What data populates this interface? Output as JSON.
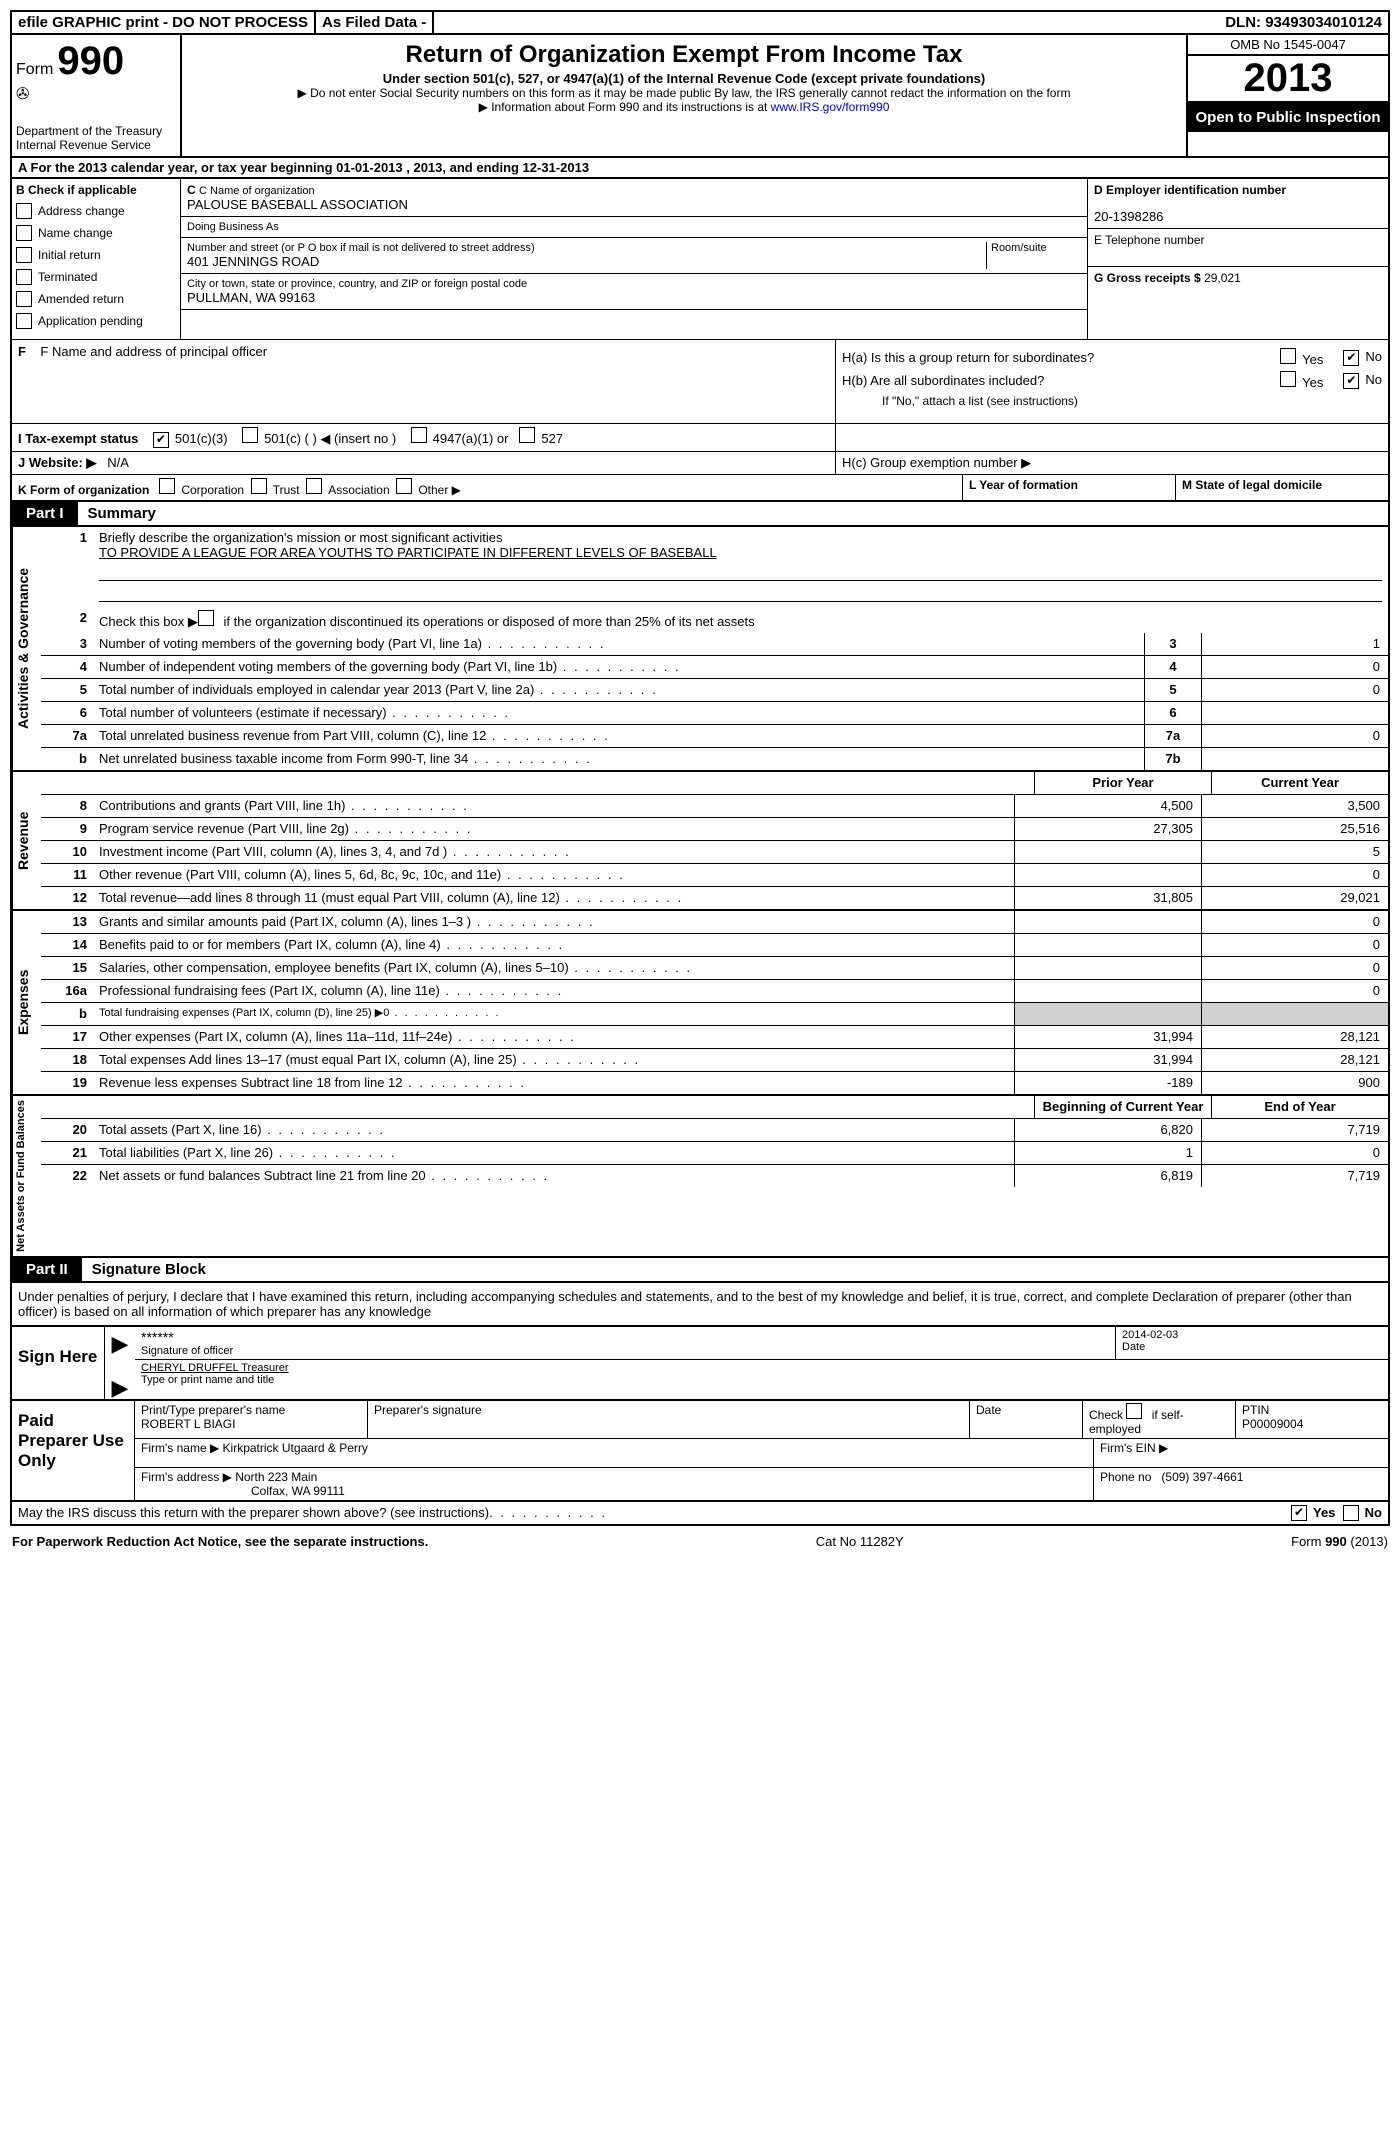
{
  "topbar": {
    "efile": "efile GRAPHIC print - DO NOT PROCESS",
    "asfiled": "As Filed Data -",
    "dln_label": "DLN:",
    "dln": "93493034010124"
  },
  "header": {
    "form_label": "Form",
    "form_num": "990",
    "dept": "Department of the Treasury",
    "irs": "Internal Revenue Service",
    "title": "Return of Organization Exempt From Income Tax",
    "subtitle": "Under section 501(c), 527, or 4947(a)(1) of the Internal Revenue Code (except private foundations)",
    "note1": "▶ Do not enter Social Security numbers on this form as it may be made public  By law, the IRS generally cannot redact the information on the form",
    "note2_pre": "▶ Information about Form 990 and its instructions is at ",
    "note2_link": "www.IRS.gov/form990",
    "omb": "OMB No  1545-0047",
    "year": "2013",
    "inspection": "Open to Public Inspection"
  },
  "rowA": "A  For the 2013 calendar year, or tax year beginning 01-01-2013     , 2013, and ending 12-31-2013",
  "sectionB": {
    "title": "B  Check if applicable",
    "opts": [
      "Address change",
      "Name change",
      "Initial return",
      "Terminated",
      "Amended return",
      "Application pending"
    ]
  },
  "sectionC": {
    "name_label": "C Name of organization",
    "name": "PALOUSE BASEBALL ASSOCIATION",
    "dba_label": "Doing Business As",
    "dba": "",
    "street_label": "Number and street (or P O  box if mail is not delivered to street address)",
    "room_label": "Room/suite",
    "street": "401 JENNINGS ROAD",
    "city_label": "City or town, state or province, country, and ZIP or foreign postal code",
    "city": "PULLMAN, WA  99163",
    "f_label": "F    Name and address of principal officer"
  },
  "sectionD": {
    "ein_label": "D Employer identification number",
    "ein": "20-1398286",
    "phone_label": "E Telephone number",
    "phone": "",
    "gross_label": "G Gross receipts $",
    "gross": "29,021"
  },
  "sectionH": {
    "ha": "H(a)  Is this a group return for subordinates?",
    "hb": "H(b)  Are all subordinates included?",
    "hb_note": "If \"No,\" attach a list  (see instructions)",
    "hc": "H(c)   Group exemption number ▶",
    "yes": "Yes",
    "no": "No"
  },
  "rowI": {
    "label": "I   Tax-exempt status",
    "opts": [
      "501(c)(3)",
      "501(c) (   ) ◀ (insert no )",
      "4947(a)(1) or",
      "527"
    ]
  },
  "rowJ": {
    "label": "J   Website: ▶",
    "val": "N/A"
  },
  "rowK": {
    "label": "K Form of organization",
    "opts": [
      "Corporation",
      "Trust",
      "Association",
      "Other ▶"
    ],
    "l": "L Year of formation",
    "m": "M State of legal domicile"
  },
  "part1": {
    "tab": "Part I",
    "title": "Summary",
    "side1": "Activities & Governance",
    "side2": "Revenue",
    "side3": "Expenses",
    "side4": "Net Assets or Fund Balances",
    "line1": "Briefly describe the organization's mission or most significant activities",
    "line1_val": "TO PROVIDE A LEAGUE FOR AREA YOUTHS TO PARTICIPATE IN DIFFERENT LEVELS OF BASEBALL",
    "line2": "Check this box ▶       if the organization discontinued its operations or disposed of more than 25% of its net assets",
    "lines_gov": [
      {
        "num": "3",
        "desc": "Number of voting members of the governing body (Part VI, line 1a)",
        "label": "3",
        "val": "1"
      },
      {
        "num": "4",
        "desc": "Number of independent voting members of the governing body (Part VI, line 1b)",
        "label": "4",
        "val": "0"
      },
      {
        "num": "5",
        "desc": "Total number of individuals employed in calendar year 2013 (Part V, line 2a)",
        "label": "5",
        "val": "0"
      },
      {
        "num": "6",
        "desc": "Total number of volunteers (estimate if necessary)",
        "label": "6",
        "val": ""
      },
      {
        "num": "7a",
        "desc": "Total unrelated business revenue from Part VIII, column (C), line 12",
        "label": "7a",
        "val": "0"
      },
      {
        "num": "b",
        "desc": "Net unrelated business taxable income from Form 990-T, line 34",
        "label": "7b",
        "val": ""
      }
    ],
    "prior_year": "Prior Year",
    "current_year": "Current Year",
    "lines_rev": [
      {
        "num": "8",
        "desc": "Contributions and grants (Part VIII, line 1h)",
        "py": "4,500",
        "cy": "3,500"
      },
      {
        "num": "9",
        "desc": "Program service revenue (Part VIII, line 2g)",
        "py": "27,305",
        "cy": "25,516"
      },
      {
        "num": "10",
        "desc": "Investment income (Part VIII, column (A), lines 3, 4, and 7d )",
        "py": "",
        "cy": "5"
      },
      {
        "num": "11",
        "desc": "Other revenue (Part VIII, column (A), lines 5, 6d, 8c, 9c, 10c, and 11e)",
        "py": "",
        "cy": "0"
      },
      {
        "num": "12",
        "desc": "Total revenue—add lines 8 through 11 (must equal Part VIII, column (A), line 12)",
        "py": "31,805",
        "cy": "29,021"
      }
    ],
    "lines_exp": [
      {
        "num": "13",
        "desc": "Grants and similar amounts paid (Part IX, column (A), lines 1–3 )",
        "py": "",
        "cy": "0"
      },
      {
        "num": "14",
        "desc": "Benefits paid to or for members (Part IX, column (A), line 4)",
        "py": "",
        "cy": "0"
      },
      {
        "num": "15",
        "desc": "Salaries, other compensation, employee benefits (Part IX, column (A), lines 5–10)",
        "py": "",
        "cy": "0"
      },
      {
        "num": "16a",
        "desc": "Professional fundraising fees (Part IX, column (A), line 11e)",
        "py": "",
        "cy": "0"
      },
      {
        "num": "b",
        "desc": "Total fundraising expenses (Part IX, column (D), line 25) ▶0",
        "py": "gray",
        "cy": "gray"
      },
      {
        "num": "17",
        "desc": "Other expenses (Part IX, column (A), lines 11a–11d, 11f–24e)",
        "py": "31,994",
        "cy": "28,121"
      },
      {
        "num": "18",
        "desc": "Total expenses  Add lines 13–17 (must equal Part IX, column (A), line 25)",
        "py": "31,994",
        "cy": "28,121"
      },
      {
        "num": "19",
        "desc": "Revenue less expenses  Subtract line 18 from line 12",
        "py": "-189",
        "cy": "900"
      }
    ],
    "boy": "Beginning of Current Year",
    "eoy": "End of Year",
    "lines_net": [
      {
        "num": "20",
        "desc": "Total assets (Part X, line 16)",
        "py": "6,820",
        "cy": "7,719"
      },
      {
        "num": "21",
        "desc": "Total liabilities (Part X, line 26)",
        "py": "1",
        "cy": "0"
      },
      {
        "num": "22",
        "desc": "Net assets or fund balances  Subtract line 21 from line 20",
        "py": "6,819",
        "cy": "7,719"
      }
    ]
  },
  "part2": {
    "tab": "Part II",
    "title": "Signature Block",
    "perjury": "Under penalties of perjury, I declare that I have examined this return, including accompanying schedules and statements, and to the best of my knowledge and belief, it is true, correct, and complete  Declaration of preparer (other than officer) is based on all information of which preparer has any knowledge",
    "sign_here": "Sign Here",
    "stars": "******",
    "sig_officer": "Signature of officer",
    "date": "Date",
    "sig_date": "2014-02-03",
    "officer_name": "CHERYL DRUFFEL Treasurer",
    "type_name": "Type or print name and title",
    "paid": "Paid Preparer Use Only",
    "prep_name_label": "Print/Type preparer's name",
    "prep_name": "ROBERT L BIAGI",
    "prep_sig_label": "Preparer's signature",
    "check_self": "Check        if self-employed",
    "ptin_label": "PTIN",
    "ptin": "P00009004",
    "firm_name_label": "Firm's name     ▶",
    "firm_name": "Kirkpatrick Utgaard & Perry",
    "firm_ein_label": "Firm's EIN ▶",
    "firm_addr_label": "Firm's address ▶",
    "firm_addr1": "North 223 Main",
    "firm_addr2": "Colfax, WA  99111",
    "phone_label": "Phone no",
    "phone": "(509) 397-4661",
    "discuss": "May the IRS discuss this return with the preparer shown above? (see instructions)"
  },
  "footer": {
    "left": "For Paperwork Reduction Act Notice, see the separate instructions.",
    "center": "Cat No  11282Y",
    "right": "Form 990 (2013)"
  }
}
